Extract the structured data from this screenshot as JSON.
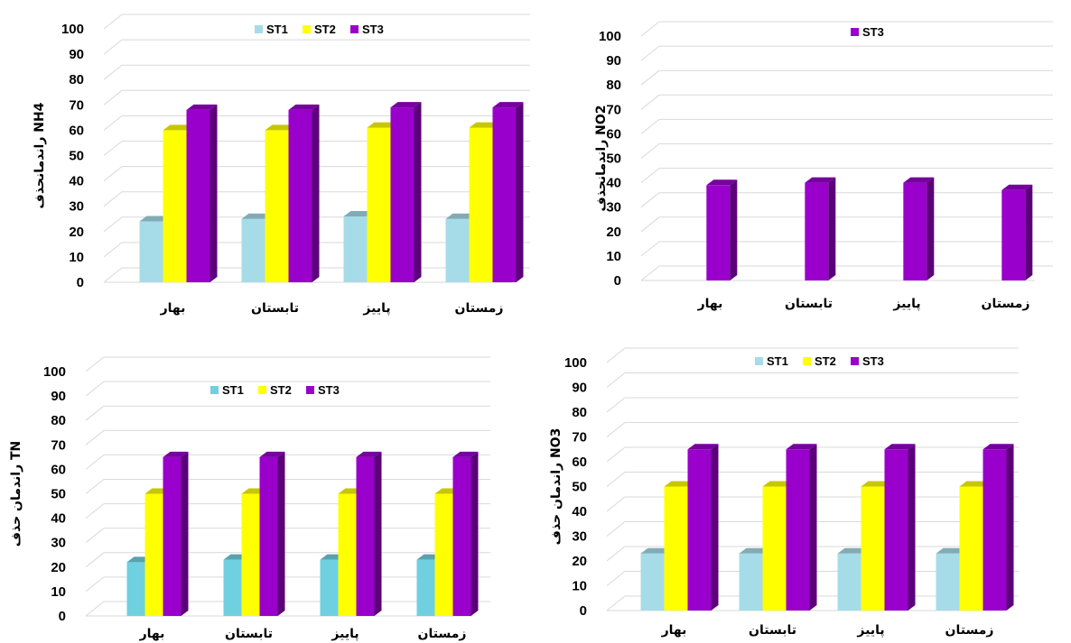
{
  "chart_data": [
    {
      "type": "bar",
      "ylabel": "راندمانحذف NH4",
      "ylim": [
        0,
        100
      ],
      "yticks": [
        "0",
        "10",
        "20",
        "30",
        "40",
        "50",
        "60",
        "70",
        "80",
        "90",
        "100"
      ],
      "categories": [
        "بهار",
        "تابستان",
        "پاییز",
        "زمستان"
      ],
      "legend_position": "top",
      "series": [
        {
          "name": "ST1",
          "color": "#a6dce8",
          "values": [
            24,
            25,
            26,
            25
          ]
        },
        {
          "name": "ST2",
          "color": "#ffff00",
          "values": [
            60,
            60,
            61,
            61
          ]
        },
        {
          "name": "ST3",
          "color": "#9900cc",
          "values": [
            68,
            68,
            69,
            69
          ]
        }
      ]
    },
    {
      "type": "bar",
      "ylabel": "راندمانحذف NO2",
      "ylim": [
        0,
        100
      ],
      "yticks": [
        "0",
        "10",
        "20",
        "30",
        "40",
        "50",
        "60",
        "70",
        "80",
        "90",
        "100"
      ],
      "categories": [
        "بهار",
        "تابستان",
        "پاییز",
        "زمستان"
      ],
      "legend_position": "top",
      "series": [
        {
          "name": "ST3",
          "color": "#9900cc",
          "values": [
            39,
            40,
            40,
            37
          ]
        }
      ]
    },
    {
      "type": "bar",
      "ylabel": "راندمان حذف TN",
      "ylim": [
        0,
        100
      ],
      "yticks": [
        "0",
        "10",
        "20",
        "30",
        "40",
        "50",
        "60",
        "70",
        "80",
        "90",
        "100"
      ],
      "categories": [
        "بهار",
        "تابستان",
        "پاییز",
        "زمستان"
      ],
      "legend_position": "top",
      "series": [
        {
          "name": "ST1",
          "color": "#6fd0e0",
          "values": [
            22,
            23,
            23,
            23
          ]
        },
        {
          "name": "ST2",
          "color": "#ffff00",
          "values": [
            50,
            50,
            50,
            50
          ]
        },
        {
          "name": "ST3",
          "color": "#9900cc",
          "values": [
            65,
            65,
            65,
            65
          ]
        }
      ]
    },
    {
      "type": "bar",
      "ylabel": "راندمان حذف NO3",
      "ylim": [
        0,
        100
      ],
      "yticks": [
        "0",
        "10",
        "20",
        "30",
        "40",
        "50",
        "60",
        "70",
        "80",
        "90",
        "100"
      ],
      "categories": [
        "بهار",
        "تابستان",
        "پاییز",
        "زمستان"
      ],
      "legend_position": "top",
      "series": [
        {
          "name": "ST1",
          "color": "#a6dce8",
          "values": [
            23,
            23,
            23,
            23
          ]
        },
        {
          "name": "ST2",
          "color": "#ffff00",
          "values": [
            50,
            50,
            50,
            50
          ]
        },
        {
          "name": "ST3",
          "color": "#9900cc",
          "values": [
            65,
            65,
            65,
            65
          ]
        }
      ]
    }
  ]
}
